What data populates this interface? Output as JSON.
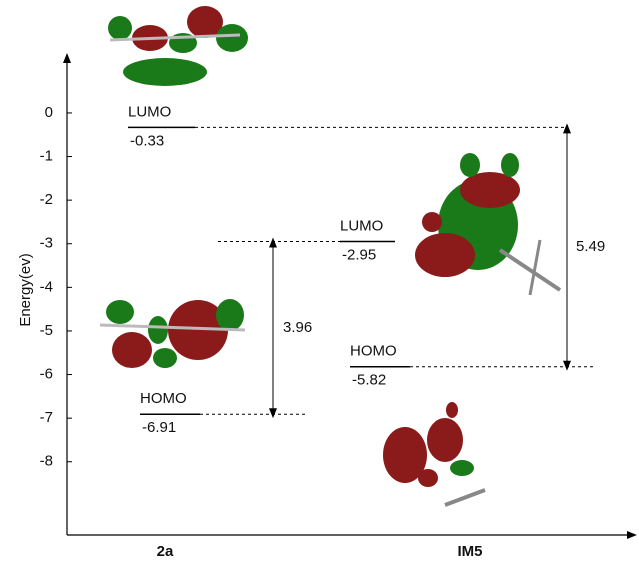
{
  "chart_data": {
    "type": "energy-level",
    "y_label": "Energy(ev)",
    "ylim": [
      -9.68,
      1.26
    ],
    "yticks": [
      0,
      -1,
      -2,
      -3,
      -4,
      -5,
      -6,
      -7,
      -8
    ],
    "categories": [
      "2a",
      "IM5"
    ],
    "levels": [
      {
        "name": "LUMO",
        "value": -0.33
      },
      {
        "name": "HOMO",
        "value": -6.91
      },
      {
        "name": "LUMO",
        "value": -2.95
      },
      {
        "name": "HOMO",
        "value": -5.82
      }
    ],
    "gaps": [
      {
        "value": 3.96
      },
      {
        "value": 5.49
      }
    ]
  }
}
